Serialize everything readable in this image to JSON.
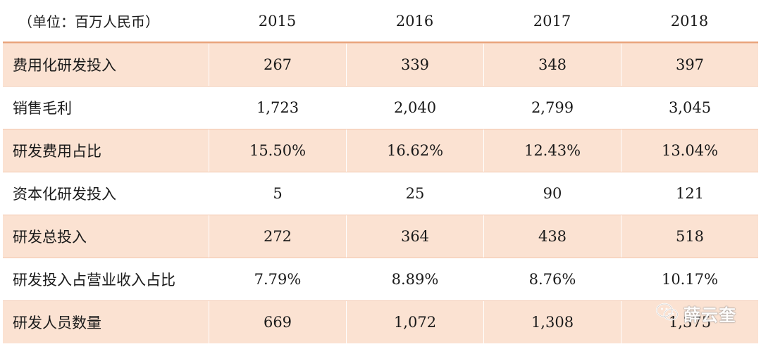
{
  "header": {
    "unit": "（单位：百万人民币）",
    "years": [
      "2015",
      "2016",
      "2017",
      "2018"
    ]
  },
  "rows": [
    {
      "label": "费用化研发投入",
      "values": [
        "267",
        "339",
        "348",
        "397"
      ]
    },
    {
      "label": "销售毛利",
      "values": [
        "1,723",
        "2,040",
        "2,799",
        "3,045"
      ]
    },
    {
      "label": "研发费用占比",
      "values": [
        "15.50%",
        "16.62%",
        "12.43%",
        "13.04%"
      ]
    },
    {
      "label": "资本化研发投入",
      "values": [
        "5",
        "25",
        "90",
        "121"
      ]
    },
    {
      "label": "研发总投入",
      "values": [
        "272",
        "364",
        "438",
        "518"
      ]
    },
    {
      "label": "研发投入占营业收入占比",
      "values": [
        "7.79%",
        "8.89%",
        "8.76%",
        "10.17%"
      ]
    },
    {
      "label": "研发人员数量",
      "values": [
        "669",
        "1,072",
        "1,308",
        "1,375"
      ]
    }
  ],
  "watermark": {
    "text": "薛云奎",
    "icon": "wechat-icon"
  }
}
